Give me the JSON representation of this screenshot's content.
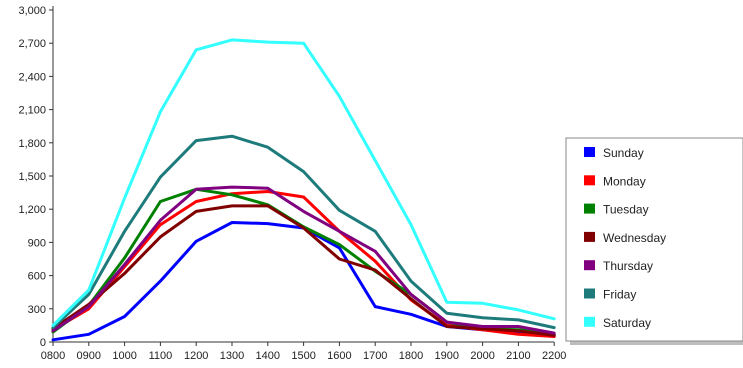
{
  "chart_data": {
    "type": "line",
    "title": "",
    "xlabel": "",
    "ylabel": "",
    "x": [
      "0800",
      "0900",
      "1000",
      "1100",
      "1200",
      "1300",
      "1400",
      "1500",
      "1600",
      "1700",
      "1800",
      "1900",
      "2000",
      "2100",
      "2200"
    ],
    "ylim": [
      0,
      3000
    ],
    "yticks": [
      0,
      300,
      600,
      900,
      1200,
      1500,
      1800,
      2100,
      2400,
      2700,
      3000
    ],
    "ytick_labels": [
      "0",
      "300",
      "600",
      "900",
      "1,200",
      "1,500",
      "1,800",
      "2,100",
      "2,400",
      "2,700",
      "3,000"
    ],
    "grid": false,
    "legend_position": "right",
    "series": [
      {
        "name": "Sunday",
        "color": "#0000ff",
        "values": [
          20,
          70,
          230,
          550,
          910,
          1080,
          1070,
          1030,
          850,
          320,
          250,
          140,
          110,
          80,
          60
        ]
      },
      {
        "name": "Monday",
        "color": "#ff0000",
        "values": [
          110,
          300,
          680,
          1060,
          1270,
          1340,
          1360,
          1310,
          1000,
          730,
          380,
          150,
          110,
          70,
          50
        ]
      },
      {
        "name": "Tuesday",
        "color": "#008000",
        "values": [
          90,
          330,
          760,
          1270,
          1380,
          1330,
          1240,
          1040,
          880,
          640,
          430,
          180,
          120,
          110,
          70
        ]
      },
      {
        "name": "Wednesday",
        "color": "#800000",
        "values": [
          120,
          340,
          620,
          950,
          1180,
          1230,
          1230,
          1030,
          750,
          650,
          390,
          140,
          120,
          100,
          60
        ]
      },
      {
        "name": "Thursday",
        "color": "#800080",
        "values": [
          100,
          320,
          700,
          1100,
          1380,
          1400,
          1390,
          1180,
          1000,
          820,
          430,
          180,
          140,
          140,
          80
        ]
      },
      {
        "name": "Friday",
        "color": "#1e7b7b",
        "values": [
          130,
          430,
          1000,
          1490,
          1820,
          1860,
          1760,
          1540,
          1190,
          1000,
          550,
          260,
          220,
          200,
          130
        ]
      },
      {
        "name": "Saturday",
        "color": "#33ffff",
        "values": [
          150,
          470,
          1300,
          2080,
          2640,
          2730,
          2710,
          2700,
          2220,
          1640,
          1060,
          360,
          350,
          290,
          210
        ]
      }
    ]
  }
}
